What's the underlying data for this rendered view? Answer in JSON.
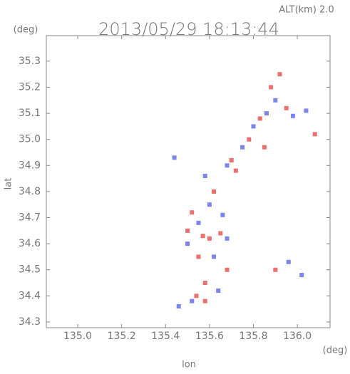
{
  "chart_data": {
    "type": "scatter",
    "title": "2013/05/29 18:13:44",
    "subtitle": "ALT(km) 2.0",
    "y_unit": "(deg)",
    "x_unit": "(deg)",
    "x_label": "lon",
    "y_label": "lat",
    "xlim": [
      134.857,
      136.149
    ],
    "ylim": [
      34.278,
      35.398
    ],
    "xticks": [
      {
        "value": 135,
        "label": "135.0"
      },
      135.2,
      135.4,
      135.6,
      135.8,
      {
        "value": 136,
        "label": "136.0"
      }
    ],
    "yticks": [
      35.3,
      35.2,
      35.1,
      {
        "value": 35,
        "label": "35.0"
      },
      34.9,
      34.8,
      34.7,
      34.6,
      34.5,
      34.4,
      34.3
    ],
    "series": [
      {
        "color": "#ec7070",
        "x": [
          135.57,
          135.6,
          135.55,
          135.52,
          135.58,
          135.65,
          135.68,
          135.88,
          135.92,
          135.95,
          135.83,
          135.78,
          135.7,
          135.85,
          136.08,
          135.9,
          135.62,
          135.5,
          135.58,
          135.72,
          135.54
        ],
        "y": [
          34.63,
          34.62,
          34.55,
          34.72,
          34.45,
          34.64,
          34.5,
          35.2,
          35.25,
          35.12,
          35.08,
          35.0,
          34.92,
          34.97,
          35.02,
          34.5,
          34.8,
          34.65,
          34.38,
          34.88,
          34.4
        ]
      },
      {
        "color": "#7c84ee",
        "x": [
          135.5,
          135.55,
          135.62,
          135.64,
          135.68,
          135.9,
          135.86,
          135.98,
          136.04,
          135.8,
          135.75,
          135.68,
          136.02,
          135.96,
          135.52,
          135.46,
          135.6,
          135.58,
          135.66,
          135.44
        ],
        "y": [
          34.6,
          34.68,
          34.55,
          34.42,
          34.62,
          35.15,
          35.1,
          35.09,
          35.11,
          35.05,
          34.97,
          34.9,
          34.48,
          34.53,
          34.38,
          34.36,
          34.75,
          34.86,
          34.71,
          34.93
        ]
      }
    ]
  }
}
